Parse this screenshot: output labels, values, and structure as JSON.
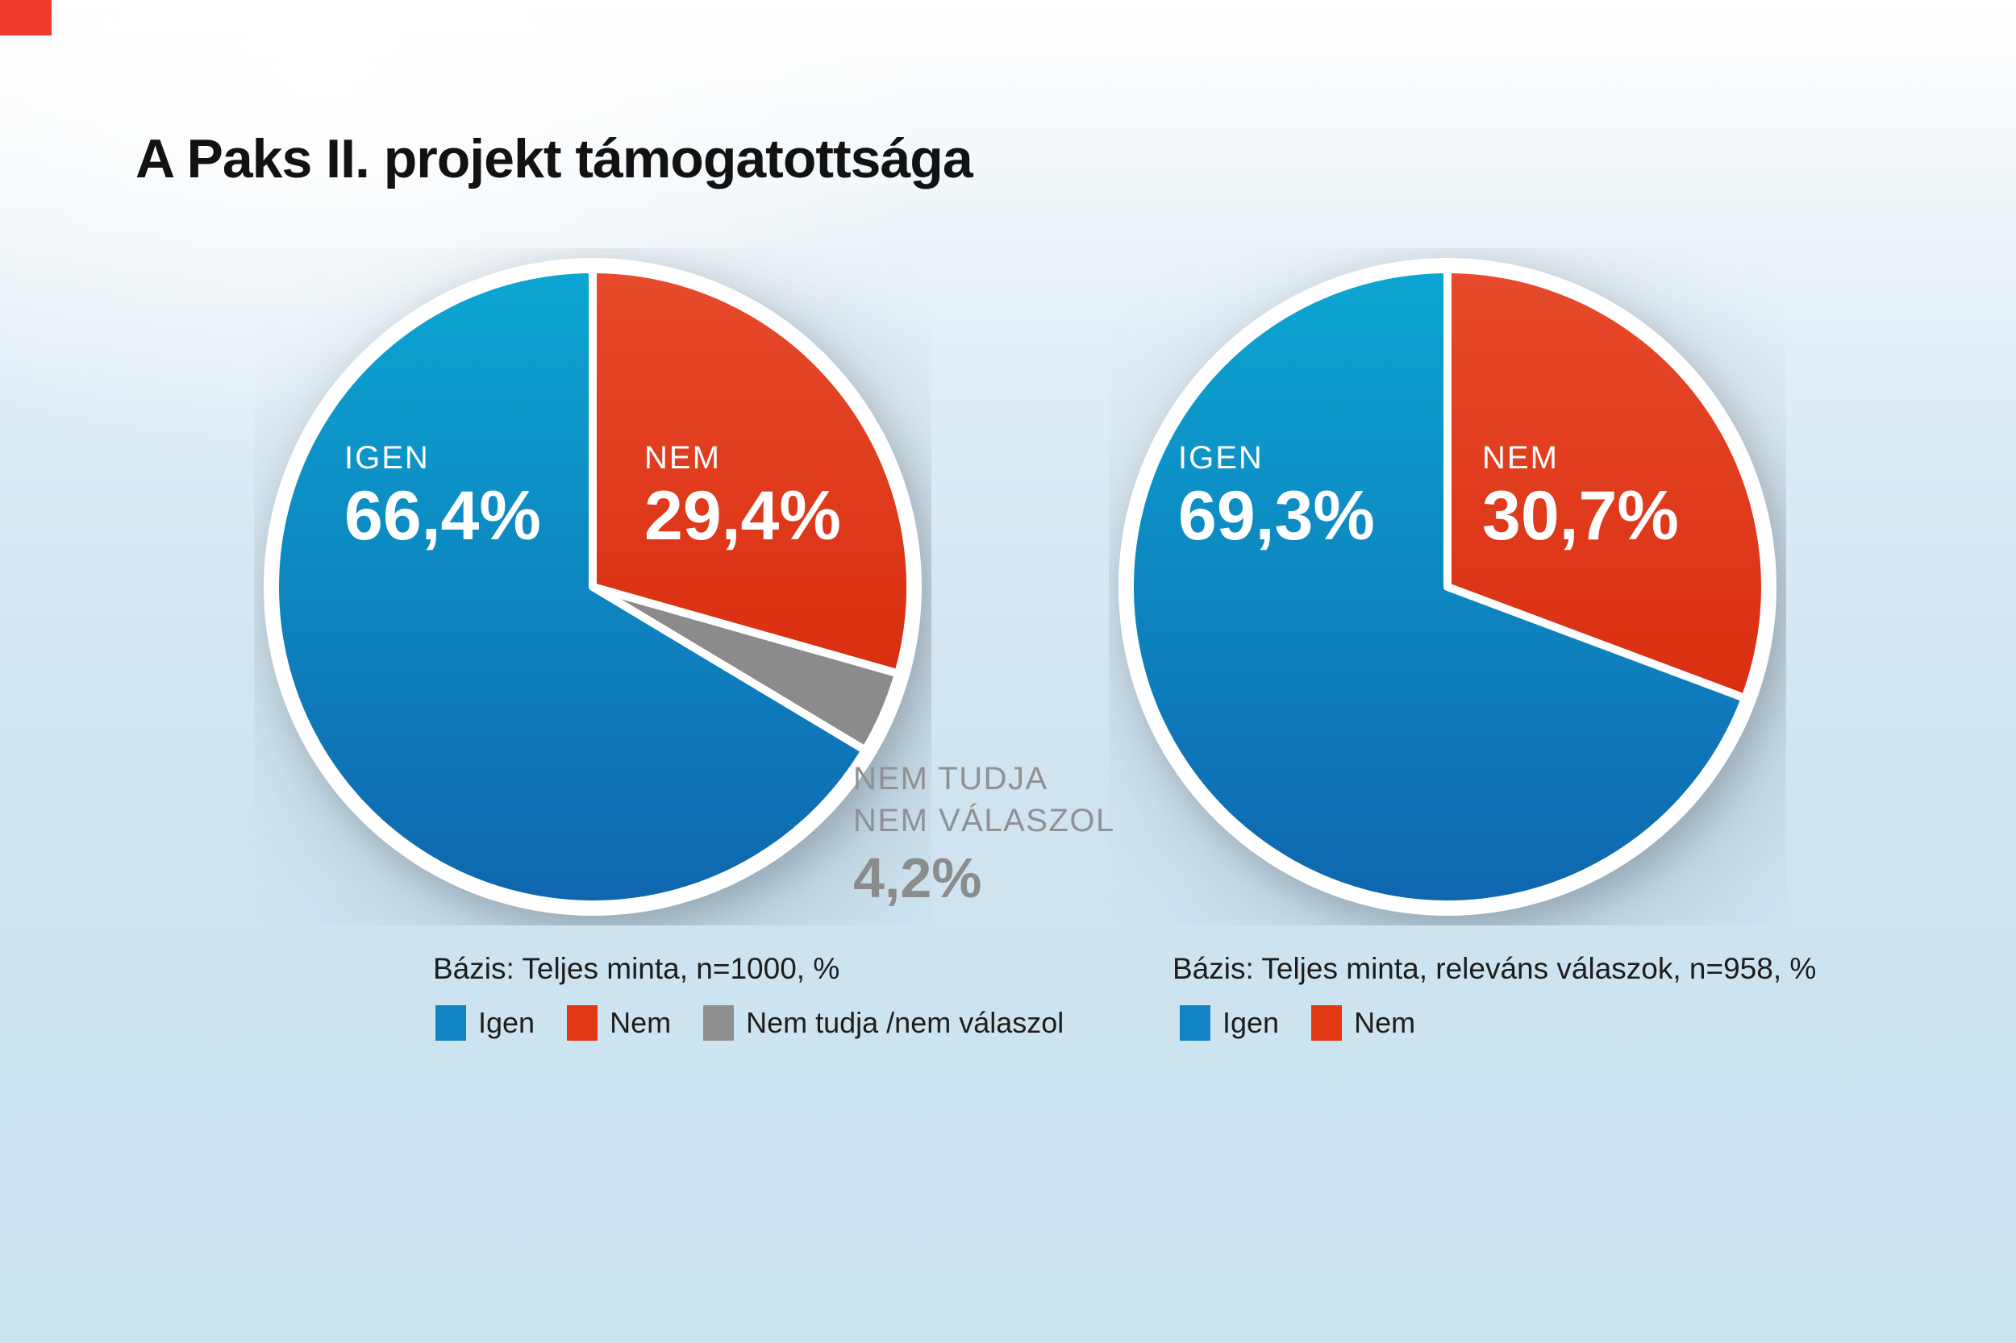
{
  "page": {
    "title": "A Paks II. projekt támogatottsága"
  },
  "brand": {
    "corner_mark": "red-square"
  },
  "colors": {
    "brand": "#ee3b2a",
    "blue_top": "#0ca6d2",
    "blue_bottom": "#0f66ae",
    "red_top": "#e74a2c",
    "red_bottom": "#da2e10",
    "gray": "#8b8b8b",
    "legend_blue": "#1283c4",
    "legend_red": "#e23913",
    "legend_gray": "#8f8f8f",
    "background_top": "#ffffff",
    "background_bottom": "#cbe2ef",
    "title_text": "#121212",
    "gray_label_text": "#8f9294"
  },
  "chart_data": [
    {
      "type": "pie",
      "title": "A Paks II. projekt támogatottsága",
      "base_note": "Bázis: Teljes minta, n=1000, %",
      "start_angle_deg": 0,
      "direction": "clockwise",
      "slices": [
        {
          "label": "NEM",
          "value_pct": 29.4,
          "value_text": "29,4%",
          "color_key": "red"
        },
        {
          "label": "NEM TUDJA / NEM VÁLASZOL",
          "label_lines": [
            "NEM TUDJA",
            "NEM VÁLASZOL"
          ],
          "value_pct": 4.2,
          "value_text": "4,2%",
          "color_key": "gray"
        },
        {
          "label": "IGEN",
          "value_pct": 66.4,
          "value_text": "66,4%",
          "color_key": "blue"
        }
      ],
      "legend": [
        {
          "label": "Igen",
          "color_key": "blue"
        },
        {
          "label": "Nem",
          "color_key": "red"
        },
        {
          "label": "Nem tudja /nem válaszol",
          "color_key": "gray"
        }
      ]
    },
    {
      "type": "pie",
      "title": "A Paks II. projekt támogatottsága",
      "base_note": "Bázis: Teljes minta, releváns válaszok, n=958, %",
      "start_angle_deg": 0,
      "direction": "clockwise",
      "slices": [
        {
          "label": "NEM",
          "value_pct": 30.7,
          "value_text": "30,7%",
          "color_key": "red"
        },
        {
          "label": "IGEN",
          "value_pct": 69.3,
          "value_text": "69,3%",
          "color_key": "blue"
        }
      ],
      "legend": [
        {
          "label": "Igen",
          "color_key": "blue"
        },
        {
          "label": "Nem",
          "color_key": "red"
        }
      ]
    }
  ]
}
